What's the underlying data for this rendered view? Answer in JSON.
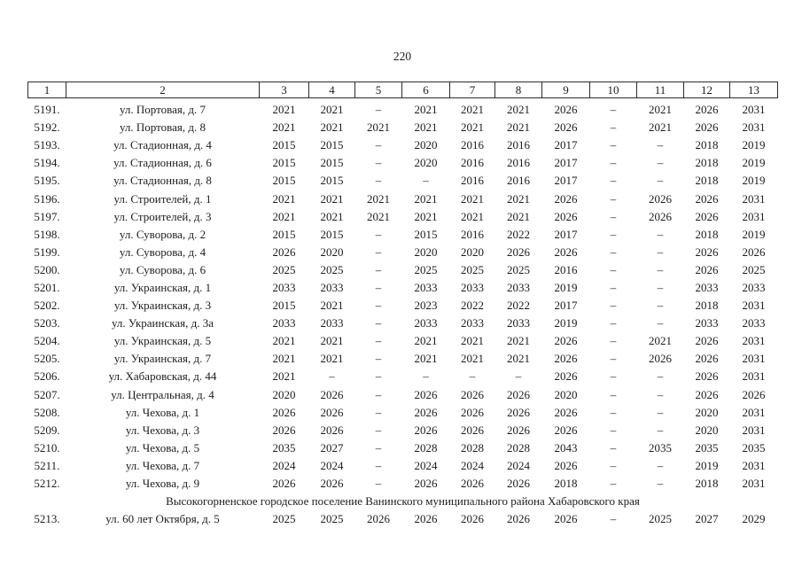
{
  "page": {
    "number": "220"
  },
  "table": {
    "headers": [
      "1",
      "2",
      "3",
      "4",
      "5",
      "6",
      "7",
      "8",
      "9",
      "10",
      "11",
      "12",
      "13"
    ],
    "rows": [
      {
        "num": "5191.",
        "address": "ул. Портовая, д. 7",
        "values": [
          "2021",
          "2021",
          "–",
          "2021",
          "2021",
          "2021",
          "2026",
          "–",
          "2021",
          "2026",
          "2031"
        ]
      },
      {
        "num": "5192.",
        "address": "ул. Портовая, д. 8",
        "values": [
          "2021",
          "2021",
          "2021",
          "2021",
          "2021",
          "2021",
          "2026",
          "–",
          "2021",
          "2026",
          "2031"
        ]
      },
      {
        "num": "5193.",
        "address": "ул. Стадионная, д. 4",
        "values": [
          "2015",
          "2015",
          "–",
          "2020",
          "2016",
          "2016",
          "2017",
          "–",
          "–",
          "2018",
          "2019"
        ]
      },
      {
        "num": "5194.",
        "address": "ул. Стадионная, д. 6",
        "values": [
          "2015",
          "2015",
          "–",
          "2020",
          "2016",
          "2016",
          "2017",
          "–",
          "–",
          "2018",
          "2019"
        ]
      },
      {
        "num": "5195.",
        "address": "ул. Стадионная, д. 8",
        "values": [
          "2015",
          "2015",
          "–",
          "–",
          "2016",
          "2016",
          "2017",
          "–",
          "–",
          "2018",
          "2019"
        ]
      },
      {
        "num": "5196.",
        "address": "ул. Строителей, д. 1",
        "values": [
          "2021",
          "2021",
          "2021",
          "2021",
          "2021",
          "2021",
          "2026",
          "–",
          "2026",
          "2026",
          "2031"
        ]
      },
      {
        "num": "5197.",
        "address": "ул. Строителей, д. 3",
        "values": [
          "2021",
          "2021",
          "2021",
          "2021",
          "2021",
          "2021",
          "2026",
          "–",
          "2026",
          "2026",
          "2031"
        ]
      },
      {
        "num": "5198.",
        "address": "ул. Суворова, д. 2",
        "values": [
          "2015",
          "2015",
          "–",
          "2015",
          "2016",
          "2022",
          "2017",
          "–",
          "–",
          "2018",
          "2019"
        ]
      },
      {
        "num": "5199.",
        "address": "ул. Суворова, д. 4",
        "values": [
          "2026",
          "2020",
          "–",
          "2020",
          "2020",
          "2026",
          "2026",
          "–",
          "–",
          "2026",
          "2026"
        ]
      },
      {
        "num": "5200.",
        "address": "ул. Суворова, д. 6",
        "values": [
          "2025",
          "2025",
          "–",
          "2025",
          "2025",
          "2025",
          "2016",
          "–",
          "–",
          "2026",
          "2025"
        ]
      },
      {
        "num": "5201.",
        "address": "ул. Украинская, д. 1",
        "values": [
          "2033",
          "2033",
          "–",
          "2033",
          "2033",
          "2033",
          "2019",
          "–",
          "–",
          "2033",
          "2033"
        ]
      },
      {
        "num": "5202.",
        "address": "ул. Украинская, д. 3",
        "values": [
          "2015",
          "2021",
          "–",
          "2023",
          "2022",
          "2022",
          "2017",
          "–",
          "–",
          "2018",
          "2031"
        ]
      },
      {
        "num": "5203.",
        "address": "ул. Украинская, д. 3а",
        "values": [
          "2033",
          "2033",
          "–",
          "2033",
          "2033",
          "2033",
          "2019",
          "–",
          "–",
          "2033",
          "2033"
        ]
      },
      {
        "num": "5204.",
        "address": "ул. Украинская, д. 5",
        "values": [
          "2021",
          "2021",
          "–",
          "2021",
          "2021",
          "2021",
          "2026",
          "–",
          "2021",
          "2026",
          "2031"
        ]
      },
      {
        "num": "5205.",
        "address": "ул. Украинская, д. 7",
        "values": [
          "2021",
          "2021",
          "–",
          "2021",
          "2021",
          "2021",
          "2026",
          "–",
          "2026",
          "2026",
          "2031"
        ]
      },
      {
        "num": "5206.",
        "address": "ул. Хабаровская, д. 44",
        "values": [
          "2021",
          "–",
          "–",
          "–",
          "–",
          "–",
          "2026",
          "–",
          "–",
          "2026",
          "2031"
        ]
      },
      {
        "num": "5207.",
        "address": "ул. Центральная, д. 4",
        "values": [
          "2020",
          "2026",
          "–",
          "2026",
          "2026",
          "2026",
          "2020",
          "–",
          "–",
          "2026",
          "2026"
        ]
      },
      {
        "num": "5208.",
        "address": "ул. Чехова, д. 1",
        "values": [
          "2026",
          "2026",
          "–",
          "2026",
          "2026",
          "2026",
          "2026",
          "–",
          "–",
          "2020",
          "2031"
        ]
      },
      {
        "num": "5209.",
        "address": "ул. Чехова, д. 3",
        "values": [
          "2026",
          "2026",
          "–",
          "2026",
          "2026",
          "2026",
          "2026",
          "–",
          "–",
          "2020",
          "2031"
        ]
      },
      {
        "num": "5210.",
        "address": "ул. Чехова, д. 5",
        "values": [
          "2035",
          "2027",
          "–",
          "2028",
          "2028",
          "2028",
          "2043",
          "–",
          "2035",
          "2035",
          "2035"
        ]
      },
      {
        "num": "5211.",
        "address": "ул. Чехова, д. 7",
        "values": [
          "2024",
          "2024",
          "–",
          "2024",
          "2024",
          "2024",
          "2026",
          "–",
          "–",
          "2019",
          "2031"
        ]
      },
      {
        "num": "5212.",
        "address": "ул. Чехова, д. 9",
        "values": [
          "2026",
          "2026",
          "–",
          "2026",
          "2026",
          "2026",
          "2018",
          "–",
          "–",
          "2018",
          "2031"
        ]
      },
      {
        "section": "Высокогорненское городское поселение Ванинского муниципального района Хабаровского края"
      },
      {
        "num": "5213.",
        "address": "ул. 60 лет Октября, д. 5",
        "values": [
          "2025",
          "2025",
          "2026",
          "2026",
          "2026",
          "2026",
          "2026",
          "–",
          "2025",
          "2027",
          "2029"
        ]
      }
    ]
  }
}
